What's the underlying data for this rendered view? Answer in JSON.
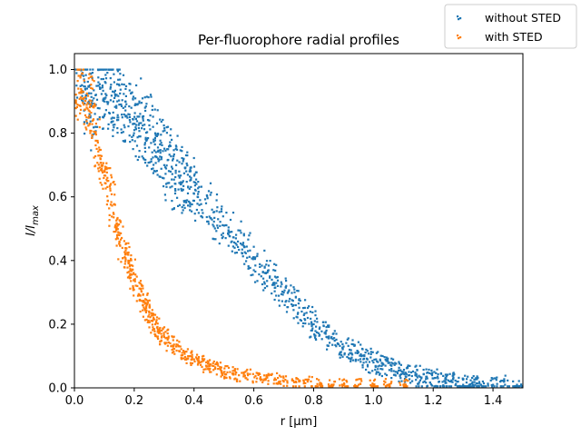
{
  "chart_data": {
    "type": "scatter",
    "title": "Per-fluorophore radial profiles",
    "xlabel": "r [μm]",
    "ylabel": "I/I_max",
    "xlim": [
      0.0,
      1.5
    ],
    "ylim": [
      0.0,
      1.05
    ],
    "x_ticks": [
      "0.0",
      "0.2",
      "0.4",
      "0.6",
      "0.8",
      "1.0",
      "1.2",
      "1.4"
    ],
    "y_ticks": [
      "0.0",
      "0.2",
      "0.4",
      "0.6",
      "0.8",
      "1.0"
    ],
    "grid": false,
    "legend_position": "upper-right (outside axes)",
    "series": [
      {
        "name": "without STED",
        "color": "#1f77b4",
        "points": [
          [
            0.02,
            1.0
          ],
          [
            0.03,
            0.98
          ],
          [
            0.04,
            0.92
          ],
          [
            0.05,
            0.86
          ],
          [
            0.06,
            0.99
          ],
          [
            0.07,
            0.82
          ],
          [
            0.08,
            0.96
          ],
          [
            0.09,
            0.97
          ],
          [
            0.1,
            0.9
          ],
          [
            0.11,
            0.99
          ],
          [
            0.12,
            0.94
          ],
          [
            0.13,
            0.9
          ],
          [
            0.14,
            0.88
          ],
          [
            0.15,
            0.95
          ],
          [
            0.16,
            0.85
          ],
          [
            0.17,
            0.9
          ],
          [
            0.18,
            0.86
          ],
          [
            0.19,
            0.88
          ],
          [
            0.2,
            0.81
          ],
          [
            0.21,
            0.89
          ],
          [
            0.22,
            0.79
          ],
          [
            0.23,
            0.84
          ],
          [
            0.24,
            0.78
          ],
          [
            0.25,
            0.84
          ],
          [
            0.26,
            0.74
          ],
          [
            0.27,
            0.8
          ],
          [
            0.28,
            0.72
          ],
          [
            0.29,
            0.77
          ],
          [
            0.3,
            0.7
          ],
          [
            0.31,
            0.75
          ],
          [
            0.32,
            0.63
          ],
          [
            0.33,
            0.72
          ],
          [
            0.34,
            0.7
          ],
          [
            0.35,
            0.68
          ],
          [
            0.36,
            0.62
          ],
          [
            0.37,
            0.69
          ],
          [
            0.38,
            0.63
          ],
          [
            0.39,
            0.66
          ],
          [
            0.4,
            0.61
          ],
          [
            0.42,
            0.59
          ],
          [
            0.44,
            0.58
          ],
          [
            0.46,
            0.56
          ],
          [
            0.48,
            0.53
          ],
          [
            0.5,
            0.51
          ],
          [
            0.52,
            0.49
          ],
          [
            0.54,
            0.47
          ],
          [
            0.56,
            0.45
          ],
          [
            0.58,
            0.43
          ],
          [
            0.6,
            0.41
          ],
          [
            0.62,
            0.38
          ],
          [
            0.64,
            0.36
          ],
          [
            0.66,
            0.34
          ],
          [
            0.68,
            0.32
          ],
          [
            0.7,
            0.3
          ],
          [
            0.72,
            0.28
          ],
          [
            0.74,
            0.26
          ],
          [
            0.76,
            0.24
          ],
          [
            0.78,
            0.22
          ],
          [
            0.8,
            0.2
          ],
          [
            0.82,
            0.19
          ],
          [
            0.84,
            0.17
          ],
          [
            0.86,
            0.16
          ],
          [
            0.88,
            0.14
          ],
          [
            0.9,
            0.13
          ],
          [
            0.92,
            0.12
          ],
          [
            0.94,
            0.11
          ],
          [
            0.96,
            0.1
          ],
          [
            0.98,
            0.09
          ],
          [
            1.0,
            0.08
          ],
          [
            1.02,
            0.07
          ],
          [
            1.04,
            0.07
          ],
          [
            1.06,
            0.06
          ],
          [
            1.08,
            0.05
          ],
          [
            1.1,
            0.05
          ],
          [
            1.12,
            0.04
          ],
          [
            1.14,
            0.04
          ],
          [
            1.16,
            0.03
          ],
          [
            1.18,
            0.03
          ],
          [
            1.2,
            0.03
          ],
          [
            1.22,
            0.02
          ],
          [
            1.24,
            0.02
          ],
          [
            1.26,
            0.02
          ],
          [
            1.28,
            0.02
          ],
          [
            1.3,
            0.01
          ],
          [
            1.32,
            0.01
          ],
          [
            1.34,
            0.01
          ],
          [
            1.36,
            0.01
          ],
          [
            1.4,
            0.01
          ],
          [
            1.44,
            0.01
          ],
          [
            1.48,
            0.01
          ]
        ]
      },
      {
        "name": "with STED",
        "color": "#ff7f0e",
        "points": [
          [
            0.01,
            0.89
          ],
          [
            0.02,
            0.98
          ],
          [
            0.03,
            0.91
          ],
          [
            0.04,
            0.85
          ],
          [
            0.05,
            0.83
          ],
          [
            0.06,
            0.94
          ],
          [
            0.07,
            0.8
          ],
          [
            0.08,
            0.73
          ],
          [
            0.09,
            0.7
          ],
          [
            0.1,
            0.68
          ],
          [
            0.11,
            0.66
          ],
          [
            0.12,
            0.62
          ],
          [
            0.13,
            0.55
          ],
          [
            0.14,
            0.5
          ],
          [
            0.15,
            0.48
          ],
          [
            0.16,
            0.44
          ],
          [
            0.17,
            0.42
          ],
          [
            0.18,
            0.4
          ],
          [
            0.19,
            0.37
          ],
          [
            0.2,
            0.34
          ],
          [
            0.21,
            0.32
          ],
          [
            0.22,
            0.29
          ],
          [
            0.23,
            0.27
          ],
          [
            0.24,
            0.25
          ],
          [
            0.25,
            0.23
          ],
          [
            0.26,
            0.21
          ],
          [
            0.27,
            0.2
          ],
          [
            0.28,
            0.18
          ],
          [
            0.29,
            0.17
          ],
          [
            0.3,
            0.16
          ],
          [
            0.32,
            0.14
          ],
          [
            0.34,
            0.13
          ],
          [
            0.36,
            0.11
          ],
          [
            0.38,
            0.1
          ],
          [
            0.4,
            0.09
          ],
          [
            0.42,
            0.08
          ],
          [
            0.44,
            0.07
          ],
          [
            0.46,
            0.07
          ],
          [
            0.48,
            0.06
          ],
          [
            0.5,
            0.05
          ],
          [
            0.52,
            0.05
          ],
          [
            0.55,
            0.04
          ],
          [
            0.58,
            0.04
          ],
          [
            0.61,
            0.03
          ],
          [
            0.64,
            0.03
          ],
          [
            0.67,
            0.03
          ],
          [
            0.7,
            0.02
          ],
          [
            0.74,
            0.02
          ],
          [
            0.78,
            0.02
          ],
          [
            0.82,
            0.01
          ],
          [
            0.86,
            0.01
          ],
          [
            0.9,
            0.01
          ],
          [
            0.95,
            0.01
          ],
          [
            1.0,
            0.01
          ],
          [
            1.05,
            0.01
          ],
          [
            1.1,
            0.01
          ]
        ]
      }
    ]
  }
}
